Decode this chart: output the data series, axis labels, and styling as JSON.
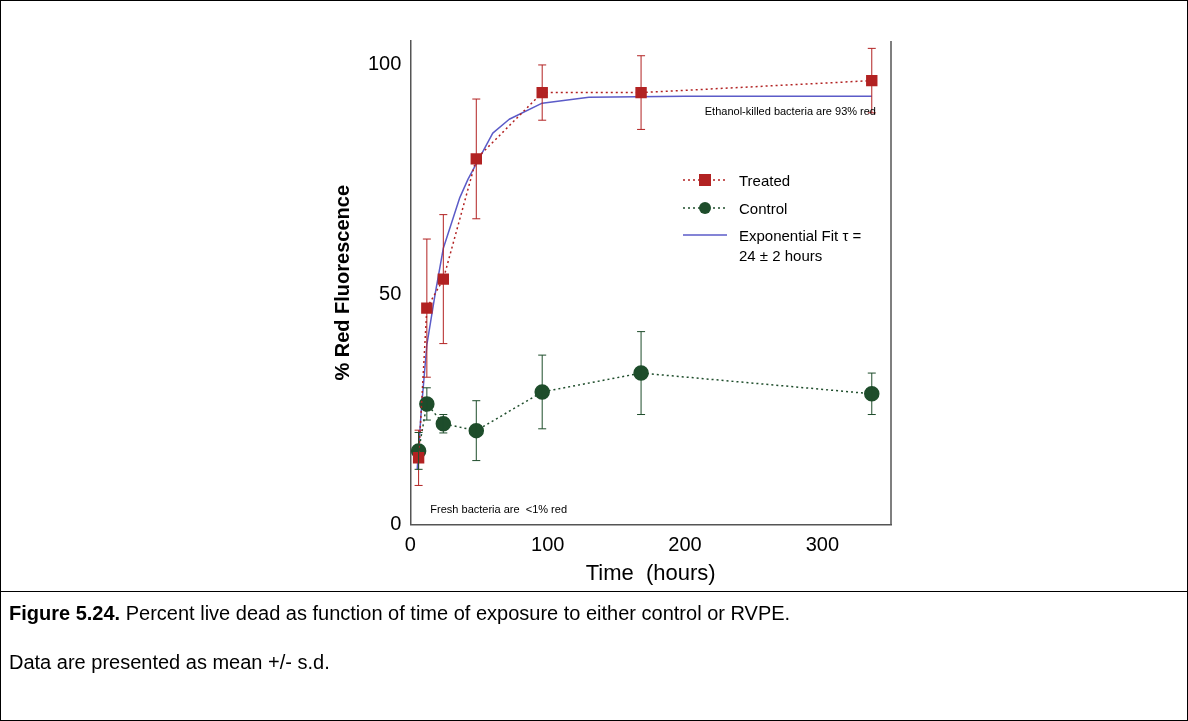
{
  "chart_data": {
    "type": "line",
    "xlabel": "Time  (hours)",
    "ylabel": "% Red Fluorescence",
    "xlim": [
      0,
      350
    ],
    "xticks": [
      0,
      100,
      200,
      300
    ],
    "ylim": [
      0,
      105
    ],
    "yticks": [
      0,
      50,
      100
    ],
    "grid": false,
    "legend": "right",
    "series": [
      {
        "name": "Treated",
        "color": "#b22222",
        "marker": "square",
        "line_style": "dotted",
        "x": [
          6,
          12,
          24,
          48,
          96,
          168,
          336
        ],
        "values": [
          14.5,
          47,
          53.3,
          79.4,
          93.8,
          93.8,
          96.4
        ],
        "errors": [
          6,
          15,
          14,
          13,
          6,
          8,
          7
        ]
      },
      {
        "name": "Control",
        "color": "#1e4d2b",
        "marker": "circle",
        "line_style": "dotted",
        "x": [
          6,
          12,
          24,
          48,
          96,
          168,
          336
        ],
        "values": [
          16,
          26.2,
          21.9,
          20.4,
          28.8,
          32.9,
          28.4
        ],
        "errors": [
          4,
          3.5,
          2,
          6.5,
          8,
          9,
          4.5
        ]
      },
      {
        "name": "Exponential Fit τ = 24 ± 2 hours",
        "color": "#5b5bc8",
        "marker": "none",
        "line_style": "solid",
        "x": [
          5,
          8,
          12,
          18,
          24,
          36,
          42,
          60,
          72,
          96,
          130,
          200,
          336
        ],
        "values": [
          12,
          25,
          39,
          50,
          60,
          71,
          75,
          85,
          88,
          91.5,
          92.8,
          93,
          93
        ]
      }
    ],
    "annotations": [
      "Ethanol-killed bacteria are 93% red",
      "Fresh bacteria are  <1% red",
      "Figure 5.24. Percent live dead as function of time of exposure to either control or RVPE.",
      "Data are presented as mean +/- s.d."
    ]
  }
}
